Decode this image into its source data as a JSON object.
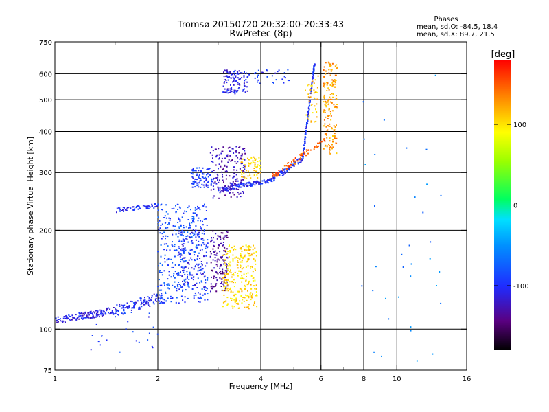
{
  "chart_data": {
    "type": "scatter",
    "title": "Tromsø 20150720 20:32:00-20:33:43",
    "subtitle": "RwPretec (8p)",
    "xlabel": "Frequency [MHz]",
    "ylabel": "Stationary phase Virtual Height [km]",
    "x_scale": "log",
    "y_scale": "log",
    "xlim": [
      1,
      16
    ],
    "ylim": [
      75,
      750
    ],
    "x_ticks": [
      1,
      2,
      4,
      6,
      8,
      10,
      16
    ],
    "x_tick_labels": [
      "1",
      "2",
      "4",
      "6",
      "8",
      "10",
      "16"
    ],
    "x_minor_ticks": [
      1.5,
      3,
      5,
      7
    ],
    "y_ticks": [
      75,
      100,
      200,
      300,
      400,
      500,
      600,
      750
    ],
    "y_tick_labels": [
      "75",
      "100",
      "200",
      "300",
      "400",
      "500",
      "600",
      "750"
    ],
    "grid": true,
    "stats": {
      "title": "Phases",
      "line1": "mean, sd,O: -84.5, 18.4",
      "line2": "mean, sd,X:  89.7, 21.5"
    },
    "colorbar": {
      "label": "[deg]",
      "range": [
        -180,
        180
      ],
      "ticks": [
        100,
        0,
        -100
      ],
      "tick_labels": [
        "100",
        "0",
        "-100"
      ]
    },
    "series": [
      {
        "type": "band",
        "phase": -110,
        "from": [
          1.0,
          106
        ],
        "to": [
          1.5,
          114
        ],
        "count": 140,
        "spread": 0.05
      },
      {
        "type": "band",
        "phase": -100,
        "from": [
          1.5,
          113
        ],
        "to": [
          2.05,
          125
        ],
        "count": 110,
        "spread": 0.08
      },
      {
        "type": "cloud",
        "phase": -85,
        "x": [
          2.0,
          2.8
        ],
        "y": [
          120,
          240
        ],
        "count": 380
      },
      {
        "type": "cloud",
        "phase": -105,
        "x": [
          2.3,
          2.75
        ],
        "y": [
          130,
          200
        ],
        "count": 90
      },
      {
        "type": "cloud",
        "phase": -135,
        "x": [
          2.85,
          3.2
        ],
        "y": [
          130,
          200
        ],
        "count": 150
      },
      {
        "type": "band",
        "phase": -100,
        "from": [
          1.5,
          230
        ],
        "to": [
          2.0,
          238
        ],
        "count": 60,
        "spread": 0.03
      },
      {
        "type": "cloud",
        "phase": -95,
        "x": [
          2.5,
          2.9
        ],
        "y": [
          270,
          310
        ],
        "count": 90
      },
      {
        "type": "cloud",
        "phase": -125,
        "x": [
          2.85,
          3.6
        ],
        "y": [
          250,
          360
        ],
        "count": 180
      },
      {
        "type": "band",
        "phase": -105,
        "from": [
          3.0,
          265
        ],
        "to": [
          4.3,
          284
        ],
        "count": 120,
        "spread": 0.03
      },
      {
        "type": "band",
        "phase": -100,
        "from": [
          4.3,
          285
        ],
        "to": [
          5.3,
          330
        ],
        "count": 80,
        "spread": 0.04
      },
      {
        "type": "band",
        "phase": -100,
        "from": [
          5.3,
          330
        ],
        "to": [
          5.75,
          650
        ],
        "count": 130,
        "spread": 0.02
      },
      {
        "type": "cloud",
        "phase": 105,
        "x": [
          3.1,
          3.9
        ],
        "y": [
          115,
          180
        ],
        "count": 260
      },
      {
        "type": "cloud",
        "phase": 110,
        "x": [
          3.5,
          4.0
        ],
        "y": [
          285,
          335
        ],
        "count": 60
      },
      {
        "type": "band",
        "phase": 150,
        "from": [
          4.3,
          290
        ],
        "to": [
          6.2,
          380
        ],
        "count": 80,
        "spread": 0.04
      },
      {
        "type": "cloud",
        "phase": 125,
        "x": [
          6.1,
          6.7
        ],
        "y": [
          340,
          650
        ],
        "count": 170
      },
      {
        "type": "cloud",
        "phase": 110,
        "x": [
          5.4,
          5.9
        ],
        "y": [
          420,
          600
        ],
        "count": 40
      },
      {
        "type": "cloud",
        "phase": -110,
        "x": [
          3.1,
          3.7
        ],
        "y": [
          520,
          615
        ],
        "count": 110
      },
      {
        "type": "cloud",
        "phase": -100,
        "x": [
          3.7,
          4.9
        ],
        "y": [
          560,
          620
        ],
        "count": 30
      },
      {
        "type": "cloud",
        "phase": -95,
        "x": [
          1.25,
          2.0
        ],
        "y": [
          85,
          115
        ],
        "count": 25
      },
      {
        "type": "cloud",
        "phase": -60,
        "x": [
          7.8,
          13.5
        ],
        "y": [
          78,
          620
        ],
        "count": 35
      }
    ]
  }
}
